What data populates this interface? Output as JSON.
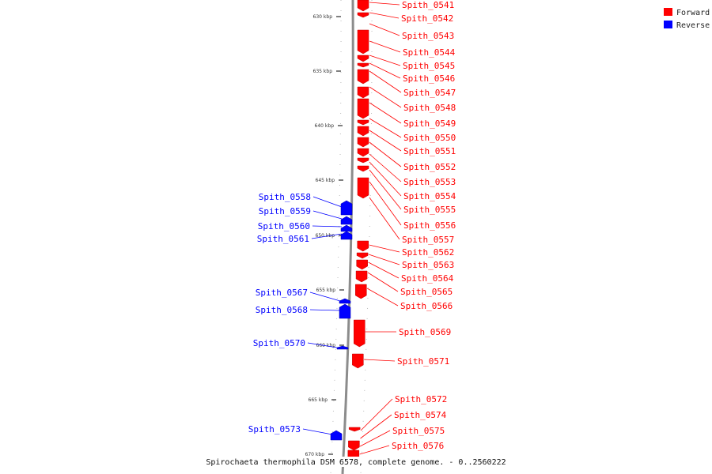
{
  "caption": "Spirochaeta thermophila DSM 6578, complete genome. - 0..2560222",
  "legend": [
    {
      "label": "Forward",
      "color": "#ff0000"
    },
    {
      "label": "Reverse",
      "color": "#0000ff"
    }
  ],
  "ticks": [
    "630 kbp",
    "635 kbp",
    "640 kbp",
    "645 kbp",
    "650 kbp",
    "655 kbp",
    "660 kbp",
    "665 kbp",
    "670 kbp"
  ],
  "forward_genes": [
    "Spith_0541",
    "Spith_0542",
    "Spith_0543",
    "Spith_0544",
    "Spith_0545",
    "Spith_0546",
    "Spith_0547",
    "Spith_0548",
    "Spith_0549",
    "Spith_0550",
    "Spith_0551",
    "Spith_0552",
    "Spith_0553",
    "Spith_0554",
    "Spith_0555",
    "Spith_0556",
    "Spith_0557",
    "Spith_0562",
    "Spith_0563",
    "Spith_0564",
    "Spith_0565",
    "Spith_0566",
    "Spith_0569",
    "Spith_0571",
    "Spith_0572",
    "Spith_0574",
    "Spith_0575",
    "Spith_0576"
  ],
  "reverse_genes": [
    "Spith_0558",
    "Spith_0559",
    "Spith_0560",
    "Spith_0561",
    "Spith_0567",
    "Spith_0568",
    "Spith_0570",
    "Spith_0573"
  ]
}
